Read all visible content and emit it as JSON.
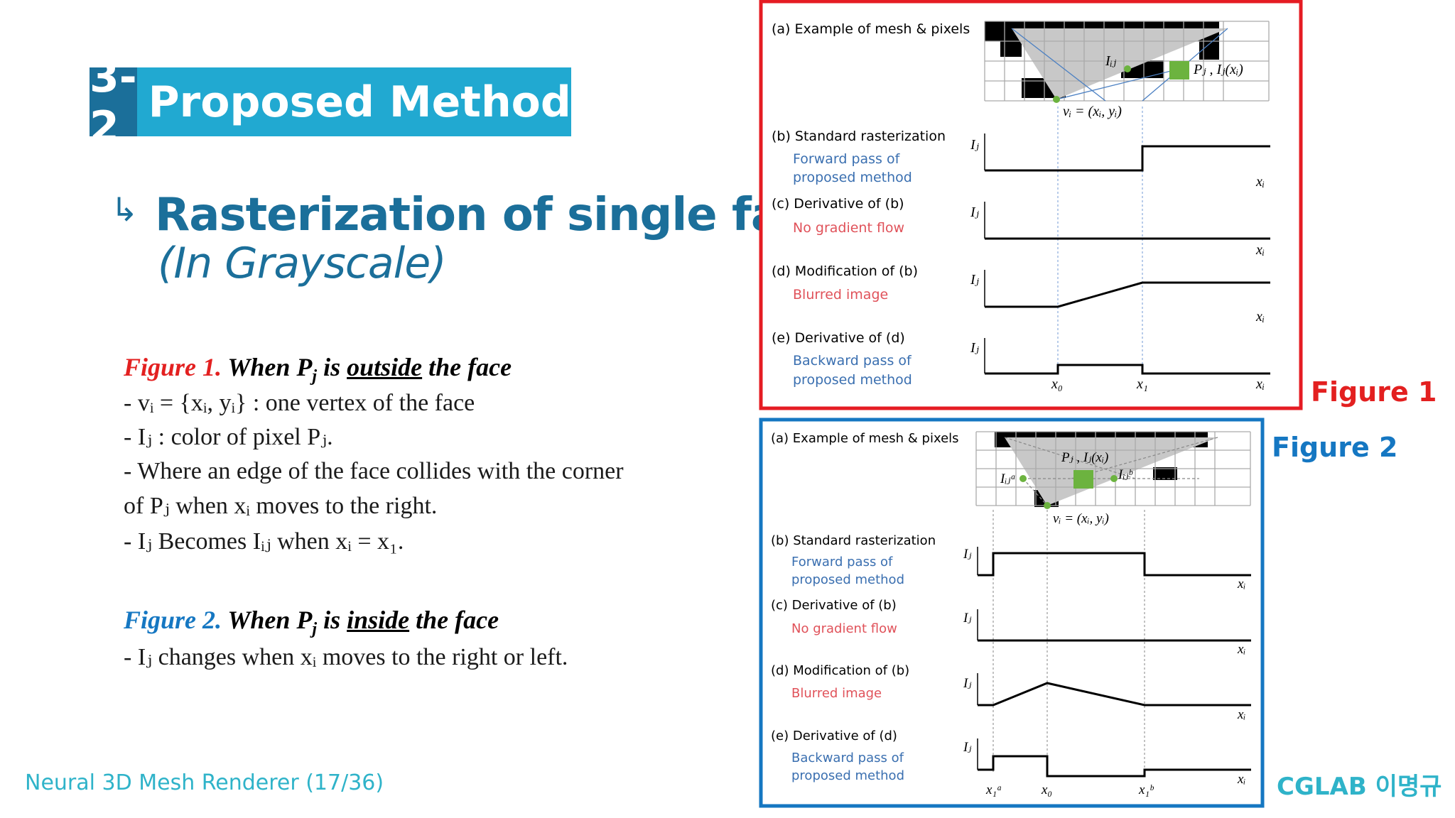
{
  "title": {
    "number": "3-2",
    "text": "Proposed  Method"
  },
  "heading": {
    "arrow": "↳",
    "main": "Rasterization of single face",
    "sub": "(In Grayscale)"
  },
  "figure1_text": {
    "label": "Figure 1.",
    "when": "When ",
    "P": "P",
    "j": "j",
    "is": " is ",
    "where": "outside",
    "rest": " the face",
    "lines": [
      "- vᵢ = {xᵢ, yᵢ} : one vertex of the face",
      "- Iⱼ : color of pixel Pⱼ.",
      "- Where an edge of the face collides with the corner",
      "of Pⱼ when xᵢ moves to the right.",
      "- Iⱼ Becomes Iᵢⱼ when xᵢ = x₁."
    ]
  },
  "figure2_text": {
    "label": "Figure 2.",
    "when": "When ",
    "P": "P",
    "j": "j",
    "is": " is ",
    "where": "inside",
    "rest": " the face",
    "lines": [
      "-  Iⱼ changes when xᵢ moves to the right or left."
    ]
  },
  "footer": {
    "left": "Neural 3D Mesh Renderer (17/36)",
    "right": "CGLAB 이명규"
  },
  "figure_labels": {
    "fig1": "Figure 1",
    "fig2": "Figure 2"
  },
  "panel_labels": {
    "a": "(a) Example of mesh & pixels",
    "b": "(b) Standard rasterization",
    "b_sub": [
      "Forward pass of",
      "proposed method"
    ],
    "c": "(c) Derivative of (b)",
    "c_sub": "No gradient flow",
    "d": "(d) Modification of (b)",
    "d_sub": "Blurred image",
    "e": "(e) Derivative of (d)",
    "e_sub": [
      "Backward pass of",
      "proposed method"
    ]
  },
  "math_labels": {
    "Ij": "Iⱼ",
    "xi": "xᵢ",
    "Iij": "Iᵢⱼ",
    "vi": "vᵢ = (xᵢ, yᵢ)",
    "pj": "Pⱼ , Iⱼ(xᵢ)",
    "x0": "x₀",
    "x1": "x₁",
    "x1a": "x₁ᵃ",
    "x1b": "x₁ᵇ",
    "Iija": "Iᵢⱼᵃ",
    "Iijb": "Iᵢⱼᵇ"
  },
  "colors": {
    "title_dark": "#1b6f9a",
    "title_light": "#21a9d1",
    "fig1_accent": "#e32020",
    "fig2_accent": "#1577c2",
    "footer": "#2fb3c9",
    "sub_blue": "#3a6fb0",
    "sub_red": "#e0525a",
    "pixel_green": "#6cb33f"
  }
}
